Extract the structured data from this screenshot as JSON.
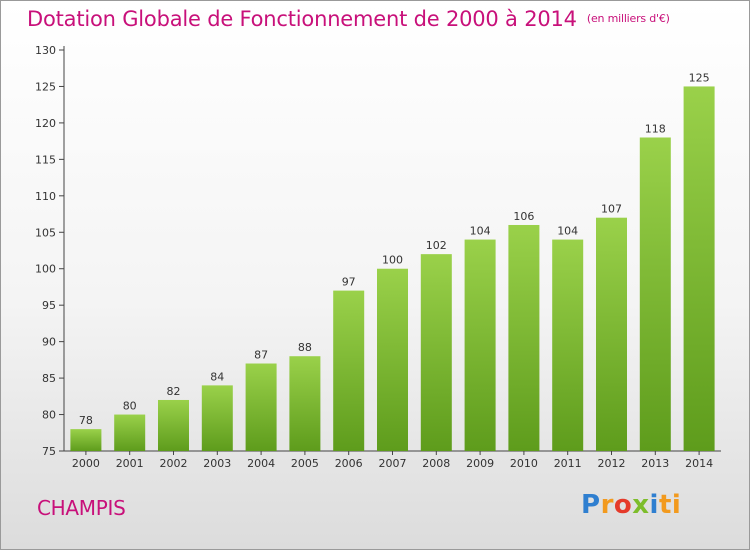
{
  "chart_data": {
    "type": "bar",
    "title": "Dotation Globale de Fonctionnement de 2000 à 2014",
    "subtitle": "(en milliers d'€)",
    "categories": [
      "2000",
      "2001",
      "2002",
      "2003",
      "2004",
      "2005",
      "2006",
      "2007",
      "2008",
      "2009",
      "2010",
      "2011",
      "2012",
      "2013",
      "2014"
    ],
    "values": [
      78,
      80,
      82,
      84,
      87,
      88,
      97,
      100,
      102,
      104,
      106,
      104,
      107,
      118,
      125
    ],
    "ylim": [
      75,
      130
    ],
    "yticks": [
      75,
      80,
      85,
      90,
      95,
      100,
      105,
      110,
      115,
      120,
      125,
      130
    ],
    "xlabel": "",
    "ylabel": "",
    "grid": false,
    "bar_color": "#7cbf2e",
    "bar_color_dark": "#5e9c1c"
  },
  "footer": {
    "commune": "CHAMPIS",
    "logo": [
      "P",
      "r",
      "o",
      "x",
      "i",
      "ti"
    ]
  },
  "colors": {
    "accent": "#c8107a"
  }
}
